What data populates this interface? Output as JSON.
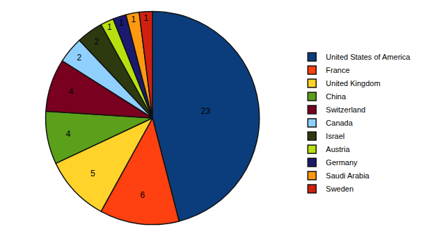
{
  "chart_data": {
    "type": "pie",
    "categories": [
      "United States of America",
      "France",
      "United Kingdom",
      "China",
      "Switzerland",
      "Canada",
      "Israel",
      "Austria",
      "Germany",
      "Saudi Arabia",
      "Sweden"
    ],
    "values": [
      23,
      6,
      5,
      4,
      4,
      2,
      2,
      1,
      1,
      1,
      1
    ],
    "colors": [
      "#0b3d7c",
      "#ff4010",
      "#ffd32a",
      "#5aa01a",
      "#7a0020",
      "#8fd0ff",
      "#2d3a10",
      "#b8e010",
      "#1a1a6e",
      "#ff9a10",
      "#d02010"
    ],
    "data_labels": true,
    "legend": "right"
  }
}
